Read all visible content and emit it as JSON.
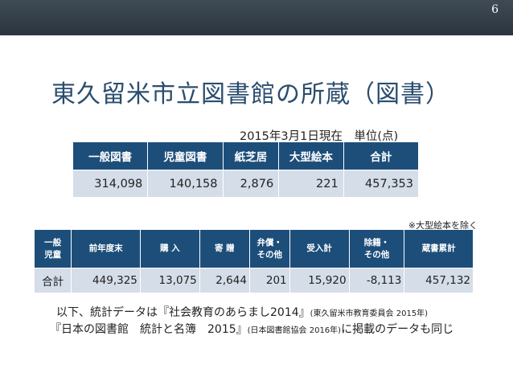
{
  "slide": {
    "page_number": "6",
    "title": "東久留米市立図書館の所蔵（図書）"
  },
  "table1": {
    "note": "2015年3月1日現在　単位(点)",
    "headers": [
      "一般図書",
      "児童図書",
      "紙芝居",
      "大型絵本",
      "合計"
    ],
    "values": [
      "314,098",
      "140,158",
      "2,876",
      "221",
      "457,353"
    ]
  },
  "table2": {
    "note": "※大型絵本を除く",
    "headers": [
      {
        "line1": "一般",
        "line2": "児童"
      },
      {
        "line1": "前年度末",
        "line2": ""
      },
      {
        "line1": "購 入",
        "line2": ""
      },
      {
        "line1": "寄 贈",
        "line2": ""
      },
      {
        "line1": "弁償・",
        "line2": "その他"
      },
      {
        "line1": "受入計",
        "line2": ""
      },
      {
        "line1": "除籍・",
        "line2": "その他"
      },
      {
        "line1": "蔵書累計",
        "line2": ""
      }
    ],
    "values": [
      "合計",
      "449,325",
      "13,075",
      "2,644",
      "201",
      "15,920",
      "-8,113",
      "457,132"
    ]
  },
  "footer": {
    "line1_main": "以下、統計データは『社会教育のあらまし2014』",
    "line1_small": "(東久留米市教育委員会 2015年)",
    "line2_main": "『日本の図書館　統計と名簿　2015』",
    "line2_small": "(日本図書館協会 2016年)",
    "line2_tail": "に掲載のデータも同じ"
  }
}
